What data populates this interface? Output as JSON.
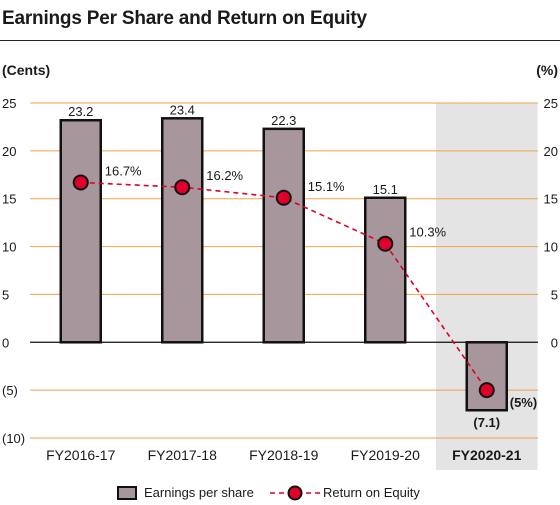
{
  "header": {
    "title": "Earnings Per Share and Return on Equity"
  },
  "chart_data": {
    "type": "bar",
    "left_axis_unit": "(Cents)",
    "right_axis_unit": "(%)",
    "categories": [
      "FY2016-17",
      "FY2017-18",
      "FY2018-19",
      "FY2019-20",
      "FY2020-21"
    ],
    "highlight_category": "FY2020-21",
    "ylim": [
      -10,
      25
    ],
    "y_ticks": [
      25,
      20,
      15,
      10,
      5,
      0,
      -5,
      -10
    ],
    "y_tick_labels": [
      "25",
      "20",
      "15",
      "10",
      "5",
      "0",
      "(5)",
      "(10)"
    ],
    "right_tick_labels": [
      "25",
      "20",
      "15",
      "10",
      "5",
      "0"
    ],
    "grid": true,
    "legend_position": "bottom",
    "series": [
      {
        "name": "Earnings per share",
        "type": "bar",
        "values": [
          23.2,
          23.4,
          22.3,
          15.1,
          -7.1
        ],
        "labels": [
          "23.2",
          "23.4",
          "22.3",
          "15.1",
          "(7.1)"
        ],
        "color": "#a7969b"
      },
      {
        "name": "Return on Equity",
        "type": "line",
        "values": [
          16.7,
          16.2,
          15.1,
          10.3,
          -5
        ],
        "labels": [
          "16.7%",
          "16.2%",
          "15.1%",
          "10.3%",
          "(5%)"
        ],
        "color": "#e0002a"
      }
    ],
    "colors": {
      "grid": "#f0a24a",
      "highlight_bg": "#e4e4e4",
      "bar_stroke": "#111111"
    }
  }
}
